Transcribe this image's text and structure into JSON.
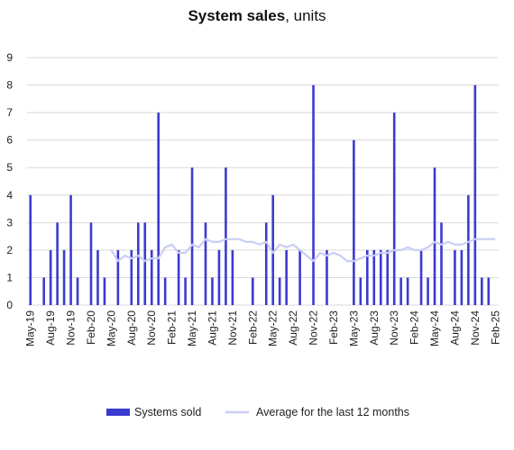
{
  "chart_data": {
    "type": "bar",
    "title_bold": "System sales",
    "title_rest": ", units",
    "xlabel": "",
    "ylabel": "",
    "ylim": [
      0,
      9
    ],
    "yticks": [
      0,
      1,
      2,
      3,
      4,
      5,
      6,
      7,
      8,
      9
    ],
    "grid": "horizontal",
    "legend_position": "bottom",
    "colors": {
      "bars": "#3b3bd1",
      "average_line": "#c9cdf5",
      "grid": "#d9d9d9"
    },
    "categories": [
      "May-19",
      "Jun-19",
      "Jul-19",
      "Aug-19",
      "Sep-19",
      "Oct-19",
      "Nov-19",
      "Dec-19",
      "Jan-20",
      "Feb-20",
      "Mar-20",
      "Apr-20",
      "May-20",
      "Jun-20",
      "Jul-20",
      "Aug-20",
      "Sep-20",
      "Oct-20",
      "Nov-20",
      "Dec-20",
      "Jan-21",
      "Feb-21",
      "Mar-21",
      "Apr-21",
      "May-21",
      "Jun-21",
      "Jul-21",
      "Aug-21",
      "Sep-21",
      "Oct-21",
      "Nov-21",
      "Dec-21",
      "Jan-22",
      "Feb-22",
      "Mar-22",
      "Apr-22",
      "May-22",
      "Jun-22",
      "Jul-22",
      "Aug-22",
      "Sep-22",
      "Oct-22",
      "Nov-22",
      "Dec-22",
      "Jan-23",
      "Feb-23",
      "Mar-23",
      "Apr-23",
      "May-23",
      "Jun-23",
      "Jul-23",
      "Aug-23",
      "Sep-23",
      "Oct-23",
      "Nov-23",
      "Dec-23",
      "Jan-24",
      "Feb-24",
      "Mar-24",
      "Apr-24",
      "May-24",
      "Jun-24",
      "Jul-24",
      "Aug-24",
      "Sep-24",
      "Oct-24",
      "Nov-24",
      "Dec-24",
      "Jan-25",
      "Feb-25"
    ],
    "x_tick_labels": [
      "May-19",
      "Aug-19",
      "Nov-19",
      "Feb-20",
      "May-20",
      "Aug-20",
      "Nov-20",
      "Feb-21",
      "May-21",
      "Aug-21",
      "Nov-21",
      "Feb-22",
      "May-22",
      "Aug-22",
      "Nov-22",
      "Feb-23",
      "May-23",
      "Aug-23",
      "Nov-23",
      "Feb-24",
      "May-24",
      "Aug-24",
      "Nov-24",
      "Feb-25"
    ],
    "series": [
      {
        "name": "Systems sold",
        "type": "bar",
        "values": [
          4,
          0,
          1,
          2,
          3,
          2,
          4,
          1,
          0,
          3,
          2,
          1,
          0,
          2,
          0,
          2,
          3,
          3,
          2,
          7,
          1,
          0,
          2,
          1,
          5,
          0,
          3,
          1,
          2,
          5,
          2,
          0,
          0,
          1,
          0,
          3,
          4,
          1,
          2,
          0,
          2,
          0,
          8,
          0,
          2,
          0,
          0,
          0,
          6,
          1,
          2,
          2,
          2,
          2,
          7,
          1,
          1,
          0,
          2,
          1,
          5,
          3,
          0,
          2,
          2,
          4,
          8,
          1,
          1,
          0
        ]
      },
      {
        "name": "Average for the last 12 months",
        "type": "line",
        "values": [
          null,
          null,
          null,
          null,
          null,
          null,
          null,
          null,
          null,
          null,
          null,
          null,
          2.0,
          1.6,
          1.8,
          1.7,
          1.8,
          1.6,
          1.7,
          1.7,
          2.1,
          2.2,
          1.9,
          1.9,
          2.2,
          2.1,
          2.4,
          2.3,
          2.3,
          2.4,
          2.4,
          2.4,
          2.3,
          2.3,
          2.2,
          2.3,
          1.9,
          2.2,
          2.1,
          2.2,
          2.0,
          1.8,
          1.6,
          1.9,
          1.8,
          1.9,
          1.8,
          1.6,
          1.6,
          1.7,
          1.8,
          1.8,
          1.9,
          1.9,
          2.0,
          2.0,
          2.1,
          2.0,
          2.0,
          2.1,
          2.3,
          2.2,
          2.3,
          2.2,
          2.2,
          2.3,
          2.4,
          2.4,
          2.4,
          2.4
        ]
      }
    ]
  }
}
